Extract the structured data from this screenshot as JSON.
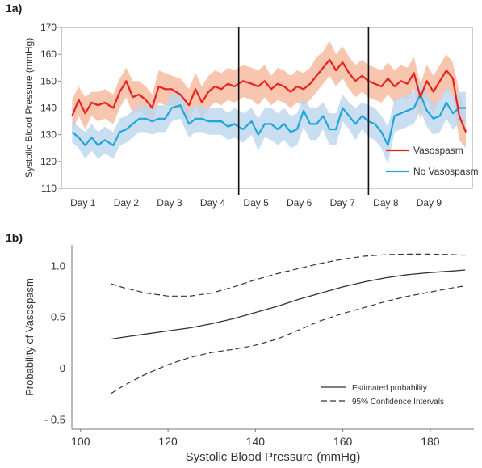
{
  "chart_data": [
    {
      "panel_label": "1a)",
      "type": "line",
      "ylabel": "Systolic Blood Pressure (mmHg)",
      "xlabel": "",
      "ylim": [
        110,
        170
      ],
      "yticks": [
        110,
        120,
        130,
        140,
        150,
        160,
        170
      ],
      "xlim": [
        0.5,
        10.0
      ],
      "x_tick_labels": [
        "Day 1",
        "Day 2",
        "Day 3",
        "Day 4",
        "Day 5",
        "Day 6",
        "Day 7",
        "Day 8",
        "Day 9"
      ],
      "x_tick_values": [
        1,
        2,
        3,
        4,
        5,
        6,
        7,
        8,
        9
      ],
      "vertical_lines_x": [
        4.6,
        7.6
      ],
      "legend_position": "bottom-right",
      "colors": {
        "vasospasm": "#e8201e",
        "vasospasm_band": "#f5b294",
        "no_vasospasm": "#1fa6dc",
        "no_vasospasm_band": "#bcd6ee",
        "divider": "#111111"
      },
      "series": [
        {
          "name": "Vasospasm",
          "x": [
            0.75,
            0.9,
            1.05,
            1.2,
            1.35,
            1.5,
            1.7,
            1.85,
            2.0,
            2.15,
            2.3,
            2.45,
            2.6,
            2.75,
            2.9,
            3.05,
            3.25,
            3.45,
            3.6,
            3.75,
            3.9,
            4.05,
            4.2,
            4.35,
            4.5,
            4.7,
            4.9,
            5.05,
            5.2,
            5.35,
            5.5,
            5.65,
            5.8,
            5.95,
            6.1,
            6.25,
            6.4,
            6.55,
            6.7,
            6.85,
            7.0,
            7.15,
            7.3,
            7.45,
            7.6,
            7.75,
            7.9,
            8.05,
            8.2,
            8.35,
            8.5,
            8.65,
            8.8,
            8.95,
            9.1,
            9.25,
            9.4,
            9.55,
            9.7,
            9.85
          ],
          "y": [
            137,
            143,
            138,
            142,
            141,
            142,
            140,
            146,
            150,
            144,
            145,
            143,
            140,
            148,
            147,
            147,
            145,
            141,
            147,
            142,
            146,
            148,
            147,
            149,
            148,
            150,
            149,
            148,
            150,
            147,
            149,
            148,
            146,
            148,
            147,
            149,
            152,
            155,
            158,
            154,
            157,
            153,
            150,
            152,
            150,
            149,
            148,
            151,
            148,
            150,
            149,
            153,
            144,
            150,
            146,
            150,
            154,
            151,
            137,
            131
          ],
          "upper": [
            143,
            148,
            144,
            146,
            146,
            147,
            145,
            151,
            155,
            150,
            150,
            148,
            145,
            154,
            153,
            152,
            151,
            147,
            153,
            148,
            152,
            154,
            153,
            155,
            154,
            156,
            155,
            154,
            156,
            152,
            155,
            154,
            152,
            154,
            153,
            155,
            159,
            161,
            165,
            160,
            163,
            159,
            156,
            158,
            156,
            155,
            154,
            157,
            154,
            156,
            155,
            159,
            149,
            156,
            152,
            156,
            160,
            157,
            146,
            138
          ],
          "lower": [
            131,
            137,
            132,
            137,
            135,
            136,
            134,
            140,
            144,
            138,
            139,
            137,
            134,
            142,
            141,
            141,
            139,
            135,
            141,
            136,
            140,
            142,
            141,
            143,
            142,
            144,
            143,
            141,
            144,
            141,
            143,
            142,
            140,
            142,
            141,
            143,
            146,
            149,
            152,
            148,
            151,
            147,
            144,
            146,
            144,
            143,
            142,
            145,
            142,
            144,
            143,
            147,
            136,
            143,
            138,
            143,
            147,
            144,
            128,
            125
          ]
        },
        {
          "name": "No Vasospasm",
          "x": [
            0.75,
            0.9,
            1.05,
            1.2,
            1.35,
            1.5,
            1.7,
            1.85,
            2.0,
            2.15,
            2.3,
            2.45,
            2.6,
            2.75,
            2.9,
            3.05,
            3.25,
            3.45,
            3.6,
            3.75,
            3.9,
            4.05,
            4.2,
            4.35,
            4.5,
            4.7,
            4.9,
            5.05,
            5.2,
            5.35,
            5.5,
            5.65,
            5.8,
            5.95,
            6.1,
            6.25,
            6.4,
            6.55,
            6.7,
            6.85,
            7.0,
            7.15,
            7.3,
            7.45,
            7.6,
            7.75,
            7.9,
            8.05,
            8.2,
            8.35,
            8.5,
            8.65,
            8.8,
            8.95,
            9.1,
            9.25,
            9.4,
            9.55,
            9.7,
            9.85
          ],
          "y": [
            131,
            129,
            126,
            129,
            126,
            128,
            126,
            131,
            132,
            134,
            136,
            136,
            135,
            136,
            136,
            140,
            141,
            134,
            136,
            136,
            135,
            135,
            135,
            133,
            134,
            132,
            135,
            130,
            134,
            134,
            132,
            134,
            131,
            132,
            139,
            134,
            134,
            137,
            132,
            132,
            140,
            137,
            134,
            137,
            135,
            134,
            131,
            126,
            137,
            138,
            139,
            140,
            145,
            139,
            136,
            137,
            142,
            138,
            140,
            140
          ],
          "upper": [
            135,
            133,
            131,
            134,
            131,
            133,
            131,
            136,
            137,
            139,
            141,
            141,
            140,
            141,
            141,
            145,
            146,
            139,
            141,
            141,
            140,
            140,
            140,
            138,
            140,
            138,
            140,
            136,
            140,
            140,
            138,
            140,
            137,
            138,
            144,
            140,
            140,
            142,
            138,
            138,
            145,
            142,
            140,
            142,
            141,
            140,
            137,
            133,
            143,
            144,
            145,
            146,
            150,
            145,
            142,
            143,
            148,
            144,
            146,
            146
          ],
          "lower": [
            127,
            125,
            121,
            124,
            121,
            123,
            121,
            126,
            127,
            129,
            131,
            131,
            130,
            131,
            131,
            135,
            136,
            129,
            131,
            131,
            130,
            130,
            130,
            128,
            129,
            127,
            130,
            124,
            129,
            128,
            126,
            128,
            125,
            126,
            133,
            128,
            128,
            132,
            126,
            126,
            135,
            132,
            128,
            132,
            129,
            128,
            125,
            119,
            131,
            132,
            133,
            134,
            139,
            133,
            130,
            131,
            136,
            132,
            134,
            134
          ]
        }
      ]
    },
    {
      "panel_label": "1b)",
      "type": "line",
      "xlabel": "Systolic Blood Pressure (mmHg)",
      "ylabel": "Probability of Vasospasm",
      "xlim": [
        98,
        190
      ],
      "ylim": [
        -0.6,
        1.2
      ],
      "xticks": [
        100,
        120,
        140,
        160,
        180
      ],
      "ytick_values": [
        -0.5,
        0,
        0.5,
        1.0
      ],
      "ytick_labels": [
        "- 0.5",
        "0",
        "0.5",
        "1.0"
      ],
      "legend_position": "bottom-right",
      "series": [
        {
          "name": "Estimated probability",
          "style": "solid",
          "x": [
            107,
            110,
            115,
            120,
            125,
            130,
            135,
            140,
            145,
            150,
            155,
            160,
            165,
            170,
            175,
            180,
            185,
            188
          ],
          "y": [
            0.28,
            0.3,
            0.33,
            0.36,
            0.39,
            0.43,
            0.48,
            0.54,
            0.6,
            0.67,
            0.73,
            0.79,
            0.84,
            0.88,
            0.91,
            0.93,
            0.945,
            0.955
          ]
        },
        {
          "name": "95% Confidence Intervals",
          "style": "dashed",
          "x": [
            107,
            110,
            115,
            120,
            125,
            130,
            135,
            140,
            145,
            150,
            155,
            160,
            165,
            170,
            175,
            180,
            185,
            188
          ],
          "y": [
            0.82,
            0.78,
            0.73,
            0.7,
            0.7,
            0.73,
            0.79,
            0.86,
            0.92,
            0.97,
            1.02,
            1.06,
            1.09,
            1.105,
            1.11,
            1.11,
            1.105,
            1.1
          ]
        },
        {
          "name": "",
          "style": "dashed",
          "x": [
            107,
            110,
            115,
            120,
            125,
            130,
            135,
            140,
            145,
            150,
            155,
            160,
            165,
            170,
            175,
            180,
            185,
            188
          ],
          "y": [
            -0.25,
            -0.17,
            -0.06,
            0.03,
            0.1,
            0.15,
            0.18,
            0.22,
            0.28,
            0.37,
            0.46,
            0.53,
            0.59,
            0.65,
            0.7,
            0.74,
            0.78,
            0.8
          ]
        }
      ]
    }
  ]
}
